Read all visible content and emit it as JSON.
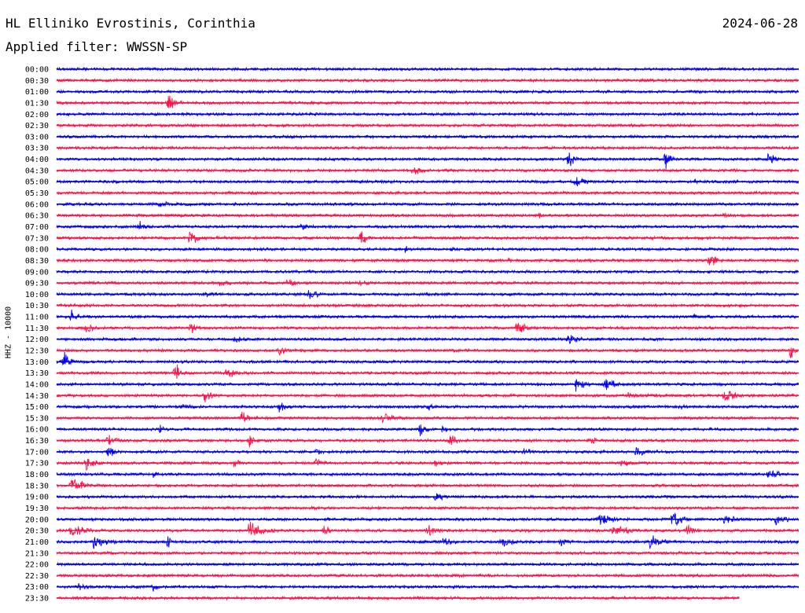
{
  "header": {
    "station": "HL Elliniko Evrostinis, Corinthia",
    "date": "2024-06-28",
    "filter": "Applied filter: WWSSN-SP"
  },
  "channel_label": "HHZ - 10000",
  "colors": {
    "trace_a": "#0000ee",
    "trace_b": "#ff1148",
    "background": "#ffffff",
    "text": "#000000"
  },
  "chart_data": {
    "type": "line",
    "subtype": "helicorder",
    "title": "HL Elliniko Evrostinis, Corinthia",
    "ylabel": "HHZ - 10000",
    "row_labels": [
      "00:00",
      "00:30",
      "01:00",
      "01:30",
      "02:00",
      "02:30",
      "03:00",
      "03:30",
      "04:00",
      "04:30",
      "05:00",
      "05:30",
      "06:00",
      "06:30",
      "07:00",
      "07:30",
      "08:00",
      "08:30",
      "09:00",
      "09:30",
      "10:00",
      "10:30",
      "11:00",
      "11:30",
      "12:00",
      "12:30",
      "13:00",
      "13:30",
      "14:00",
      "14:30",
      "15:00",
      "15:30",
      "16:00",
      "16:30",
      "17:00",
      "17:30",
      "18:00",
      "18:30",
      "19:00",
      "19:30",
      "20:00",
      "20:30",
      "21:00",
      "21:30",
      "22:00",
      "22:30",
      "23:00",
      "23:30"
    ],
    "row_minutes": 30,
    "row_colors": [
      "#0000ee",
      "#ff1148"
    ],
    "end_fraction_last_row": 0.92,
    "events": [
      {
        "row": 3,
        "t": 0.15,
        "amp": 15,
        "dur": 0.035
      },
      {
        "row": 8,
        "t": 0.69,
        "amp": 14,
        "dur": 0.03
      },
      {
        "row": 8,
        "t": 0.82,
        "amp": 14,
        "dur": 0.03
      },
      {
        "row": 8,
        "t": 0.96,
        "amp": 14,
        "dur": 0.03
      },
      {
        "row": 9,
        "t": 0.48,
        "amp": 10,
        "dur": 0.04
      },
      {
        "row": 10,
        "t": 0.7,
        "amp": 10,
        "dur": 0.04
      },
      {
        "row": 10,
        "t": 0.86,
        "amp": 5,
        "dur": 0.03
      },
      {
        "row": 12,
        "t": 0.14,
        "amp": 9,
        "dur": 0.03
      },
      {
        "row": 13,
        "t": 0.65,
        "amp": 5,
        "dur": 0.02
      },
      {
        "row": 13,
        "t": 0.9,
        "amp": 5,
        "dur": 0.05
      },
      {
        "row": 14,
        "t": 0.11,
        "amp": 9,
        "dur": 0.04
      },
      {
        "row": 14,
        "t": 0.33,
        "amp": 6,
        "dur": 0.04
      },
      {
        "row": 15,
        "t": 0.18,
        "amp": 12,
        "dur": 0.04
      },
      {
        "row": 15,
        "t": 0.41,
        "amp": 11,
        "dur": 0.03
      },
      {
        "row": 16,
        "t": 0.47,
        "amp": 6,
        "dur": 0.03
      },
      {
        "row": 16,
        "t": 0.53,
        "amp": 6,
        "dur": 0.02
      },
      {
        "row": 17,
        "t": 0.61,
        "amp": 6,
        "dur": 0.02
      },
      {
        "row": 17,
        "t": 0.88,
        "amp": 15,
        "dur": 0.03
      },
      {
        "row": 19,
        "t": 0.22,
        "amp": 6,
        "dur": 0.06
      },
      {
        "row": 19,
        "t": 0.31,
        "amp": 7,
        "dur": 0.05
      },
      {
        "row": 19,
        "t": 0.41,
        "amp": 7,
        "dur": 0.04
      },
      {
        "row": 20,
        "t": 0.2,
        "amp": 6,
        "dur": 0.04
      },
      {
        "row": 20,
        "t": 0.34,
        "amp": 10,
        "dur": 0.04
      },
      {
        "row": 22,
        "t": 0.02,
        "amp": 12,
        "dur": 0.03
      },
      {
        "row": 22,
        "t": 0.86,
        "amp": 6,
        "dur": 0.02
      },
      {
        "row": 23,
        "t": 0.04,
        "amp": 10,
        "dur": 0.04
      },
      {
        "row": 23,
        "t": 0.18,
        "amp": 10,
        "dur": 0.03
      },
      {
        "row": 23,
        "t": 0.62,
        "amp": 12,
        "dur": 0.04
      },
      {
        "row": 24,
        "t": 0.24,
        "amp": 7,
        "dur": 0.05
      },
      {
        "row": 24,
        "t": 0.69,
        "amp": 14,
        "dur": 0.04
      },
      {
        "row": 25,
        "t": 0.3,
        "amp": 9,
        "dur": 0.04
      },
      {
        "row": 25,
        "t": 0.99,
        "amp": 15,
        "dur": 0.02
      },
      {
        "row": 26,
        "t": 0.01,
        "amp": 15,
        "dur": 0.03
      },
      {
        "row": 27,
        "t": 0.16,
        "amp": 16,
        "dur": 0.03
      },
      {
        "row": 27,
        "t": 0.23,
        "amp": 9,
        "dur": 0.04
      },
      {
        "row": 28,
        "t": 0.7,
        "amp": 12,
        "dur": 0.04
      },
      {
        "row": 28,
        "t": 0.74,
        "amp": 12,
        "dur": 0.04
      },
      {
        "row": 29,
        "t": 0.2,
        "amp": 10,
        "dur": 0.03
      },
      {
        "row": 29,
        "t": 0.77,
        "amp": 8,
        "dur": 0.05
      },
      {
        "row": 29,
        "t": 0.9,
        "amp": 12,
        "dur": 0.05
      },
      {
        "row": 30,
        "t": 0.17,
        "amp": 8,
        "dur": 0.03
      },
      {
        "row": 30,
        "t": 0.3,
        "amp": 10,
        "dur": 0.04
      },
      {
        "row": 30,
        "t": 0.5,
        "amp": 7,
        "dur": 0.03
      },
      {
        "row": 30,
        "t": 0.84,
        "amp": 6,
        "dur": 0.03
      },
      {
        "row": 31,
        "t": 0.25,
        "amp": 11,
        "dur": 0.03
      },
      {
        "row": 31,
        "t": 0.44,
        "amp": 12,
        "dur": 0.04
      },
      {
        "row": 32,
        "t": 0.14,
        "amp": 8,
        "dur": 0.02
      },
      {
        "row": 32,
        "t": 0.49,
        "amp": 11,
        "dur": 0.03
      },
      {
        "row": 32,
        "t": 0.52,
        "amp": 7,
        "dur": 0.03
      },
      {
        "row": 33,
        "t": 0.07,
        "amp": 14,
        "dur": 0.03
      },
      {
        "row": 33,
        "t": 0.26,
        "amp": 12,
        "dur": 0.03
      },
      {
        "row": 33,
        "t": 0.53,
        "amp": 11,
        "dur": 0.03
      },
      {
        "row": 33,
        "t": 0.72,
        "amp": 7,
        "dur": 0.04
      },
      {
        "row": 34,
        "t": 0.07,
        "amp": 9,
        "dur": 0.04
      },
      {
        "row": 34,
        "t": 0.35,
        "amp": 7,
        "dur": 0.04
      },
      {
        "row": 34,
        "t": 0.63,
        "amp": 8,
        "dur": 0.04
      },
      {
        "row": 34,
        "t": 0.78,
        "amp": 11,
        "dur": 0.03
      },
      {
        "row": 35,
        "t": 0.04,
        "amp": 11,
        "dur": 0.04
      },
      {
        "row": 35,
        "t": 0.24,
        "amp": 9,
        "dur": 0.04
      },
      {
        "row": 35,
        "t": 0.35,
        "amp": 9,
        "dur": 0.04
      },
      {
        "row": 35,
        "t": 0.51,
        "amp": 8,
        "dur": 0.03
      },
      {
        "row": 35,
        "t": 0.76,
        "amp": 8,
        "dur": 0.04
      },
      {
        "row": 36,
        "t": 0.13,
        "amp": 7,
        "dur": 0.03
      },
      {
        "row": 36,
        "t": 0.96,
        "amp": 12,
        "dur": 0.04
      },
      {
        "row": 37,
        "t": 0.02,
        "amp": 14,
        "dur": 0.06
      },
      {
        "row": 38,
        "t": 0.51,
        "amp": 9,
        "dur": 0.04
      },
      {
        "row": 38,
        "t": 0.93,
        "amp": 6,
        "dur": 0.01
      },
      {
        "row": 40,
        "t": 0.73,
        "amp": 10,
        "dur": 0.08
      },
      {
        "row": 40,
        "t": 0.83,
        "amp": 14,
        "dur": 0.04
      },
      {
        "row": 40,
        "t": 0.9,
        "amp": 8,
        "dur": 0.06
      },
      {
        "row": 40,
        "t": 0.97,
        "amp": 12,
        "dur": 0.04
      },
      {
        "row": 41,
        "t": 0.02,
        "amp": 12,
        "dur": 0.06
      },
      {
        "row": 41,
        "t": 0.26,
        "amp": 14,
        "dur": 0.06
      },
      {
        "row": 41,
        "t": 0.36,
        "amp": 9,
        "dur": 0.04
      },
      {
        "row": 41,
        "t": 0.5,
        "amp": 10,
        "dur": 0.05
      },
      {
        "row": 41,
        "t": 0.75,
        "amp": 10,
        "dur": 0.08
      },
      {
        "row": 41,
        "t": 0.85,
        "amp": 12,
        "dur": 0.04
      },
      {
        "row": 42,
        "t": 0.05,
        "amp": 12,
        "dur": 0.06
      },
      {
        "row": 42,
        "t": 0.15,
        "amp": 11,
        "dur": 0.02
      },
      {
        "row": 42,
        "t": 0.52,
        "amp": 10,
        "dur": 0.04
      },
      {
        "row": 42,
        "t": 0.6,
        "amp": 9,
        "dur": 0.05
      },
      {
        "row": 42,
        "t": 0.68,
        "amp": 8,
        "dur": 0.04
      },
      {
        "row": 42,
        "t": 0.8,
        "amp": 11,
        "dur": 0.06
      },
      {
        "row": 46,
        "t": 0.03,
        "amp": 9,
        "dur": 0.03
      },
      {
        "row": 46,
        "t": 0.13,
        "amp": 10,
        "dur": 0.02
      }
    ]
  }
}
